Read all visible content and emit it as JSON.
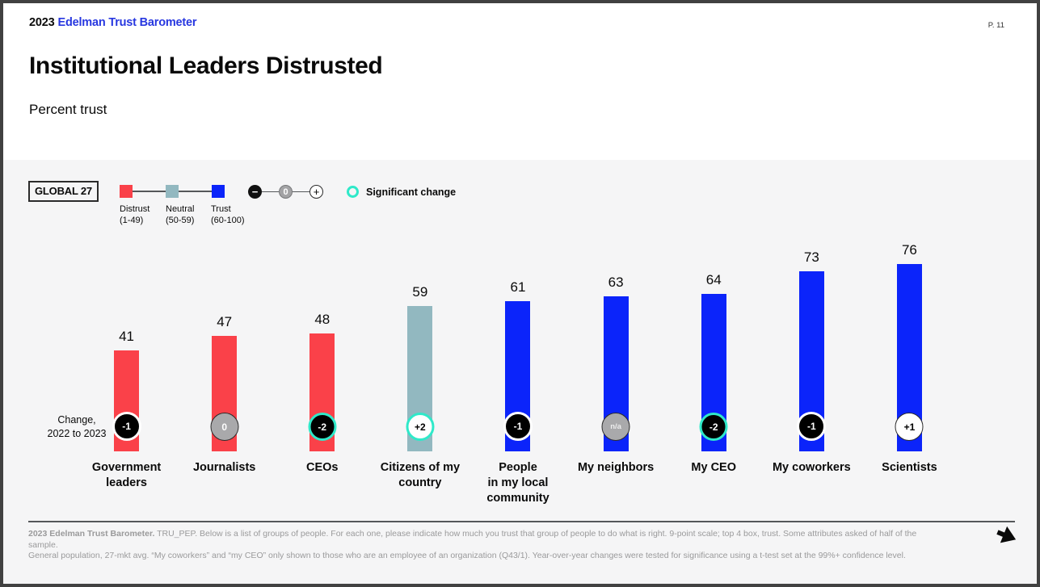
{
  "header": {
    "year": "2023",
    "brand": "Edelman Trust Barometer",
    "page": "P. 11"
  },
  "title": "Institutional Leaders Distrusted",
  "subtitle": "Percent trust",
  "colors": {
    "distrust": "#FA4149",
    "neutral": "#92B8C0",
    "trust": "#0B24FA",
    "significant": "#2FE9C9",
    "logo_blue": "#2737E0",
    "section_bg": "#F5F5F6"
  },
  "legend": {
    "global_label": "GLOBAL 27",
    "scale": [
      {
        "label": "Distrust",
        "range": "(1-49)"
      },
      {
        "label": "Neutral",
        "range": "(50-59)"
      },
      {
        "label": "Trust",
        "range": "(60-100)"
      }
    ],
    "change_symbols": {
      "minus": "−",
      "zero": "0",
      "plus": "+"
    },
    "significant_label": "Significant change"
  },
  "change_row_label": "Change,\n2022 to 2023",
  "chart_data": {
    "type": "bar",
    "title": "Institutional Leaders Distrusted",
    "subtitle": "Percent trust",
    "ylabel": "Percent trust",
    "ylim": [
      0,
      100
    ],
    "grid": false,
    "categories": [
      "Government leaders",
      "Journalists",
      "CEOs",
      "Citizens of my country",
      "People in my local community",
      "My neighbors",
      "My CEO",
      "My coworkers",
      "Scientists"
    ],
    "values": [
      41,
      47,
      48,
      59,
      61,
      63,
      64,
      73,
      76
    ],
    "bands": [
      "distrust",
      "distrust",
      "distrust",
      "neutral",
      "trust",
      "trust",
      "trust",
      "trust",
      "trust"
    ],
    "changes_2022_to_2023": [
      "-1",
      "0",
      "-2",
      "+2",
      "-1",
      "n/a",
      "-2",
      "-1",
      "+1"
    ],
    "significant_change": [
      false,
      false,
      true,
      true,
      false,
      false,
      true,
      false,
      false
    ]
  },
  "bars": [
    {
      "label": "Government\nleaders",
      "value": 41,
      "band": "distrust",
      "change": "-1",
      "fill": "#000000",
      "text_color": "#ffffff",
      "ring": "#ffffff",
      "ring_w": 3
    },
    {
      "label": "Journalists",
      "value": 47,
      "band": "distrust",
      "change": "0",
      "fill": "#A9A9AB",
      "text_color": "#ffffff",
      "ring": "#2b2b2b",
      "ring_w": 1.5
    },
    {
      "label": "CEOs",
      "value": 48,
      "band": "distrust",
      "change": "-2",
      "fill": "#000000",
      "text_color": "#ffffff",
      "ring": "#2FE9C9",
      "ring_w": 3.5
    },
    {
      "label": "Citizens of my\ncountry",
      "value": 59,
      "band": "neutral",
      "change": "+2",
      "fill": "#ffffff",
      "text_color": "#000000",
      "ring": "#2FE9C9",
      "ring_w": 3.5
    },
    {
      "label": "People\nin my local\ncommunity",
      "value": 61,
      "band": "trust",
      "change": "-1",
      "fill": "#000000",
      "text_color": "#ffffff",
      "ring": "#ffffff",
      "ring_w": 3
    },
    {
      "label": "My neighbors",
      "value": 63,
      "band": "trust",
      "change": "n/a",
      "fill": "#A9A9AB",
      "text_color": "#ededed",
      "ring": "#2b2b2b",
      "ring_w": 1.5
    },
    {
      "label": "My CEO",
      "value": 64,
      "band": "trust",
      "change": "-2",
      "fill": "#000000",
      "text_color": "#ffffff",
      "ring": "#2FE9C9",
      "ring_w": 3.5
    },
    {
      "label": "My coworkers",
      "value": 73,
      "band": "trust",
      "change": "-1",
      "fill": "#000000",
      "text_color": "#ffffff",
      "ring": "#ffffff",
      "ring_w": 3
    },
    {
      "label": "Scientists",
      "value": 76,
      "band": "trust",
      "change": "+1",
      "fill": "#ffffff",
      "text_color": "#000000",
      "ring": "#2b2b2b",
      "ring_w": 1.5
    }
  ],
  "footer": {
    "source": "2023 Edelman Trust Barometer.",
    "note1": " TRU_PEP. Below is a list of groups of people. For each one, please indicate how much you trust that group of people to do what is right. 9-point scale; top 4 box, trust. Some attributes asked of half of the sample.",
    "note2": "General population, 27-mkt avg. “My coworkers” and “my CEO” only shown to those who are an employee of an organization (Q43/1). Year-over-year changes were tested for significance using a t-test set at the 99%+ confidence level."
  }
}
